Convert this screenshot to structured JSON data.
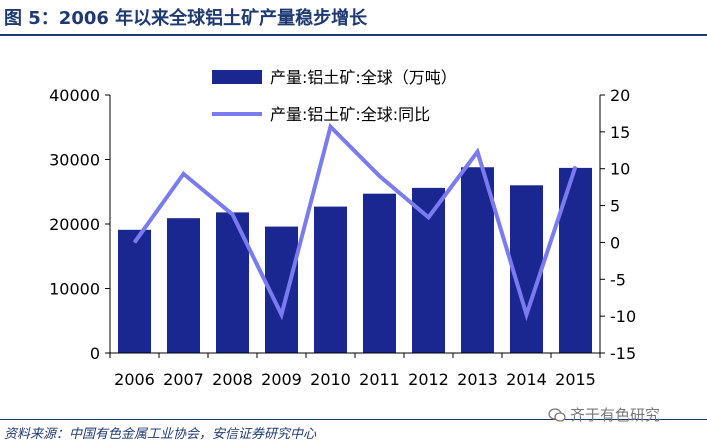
{
  "title": "图 5：2006 年以来全球铝土矿产量稳步增长",
  "source": "资料来源：中国有色金属工业协会，安信证券研究中心",
  "watermark": "齐于有色研究",
  "chart_data": {
    "type": "bar",
    "categories": [
      "2006",
      "2007",
      "2008",
      "2009",
      "2010",
      "2011",
      "2012",
      "2013",
      "2014",
      "2015"
    ],
    "series": [
      {
        "name": "产量:铝土矿:全球（万吨）",
        "type": "bar",
        "axis": "left",
        "color": "#1a2791",
        "values": [
          19100,
          20900,
          21800,
          19600,
          22700,
          24700,
          25600,
          28800,
          26000,
          28700
        ]
      },
      {
        "name": "产量:铝土矿:全球:同比",
        "type": "line",
        "axis": "right",
        "color": "#7b7bf0",
        "values": [
          0,
          9.3,
          3.8,
          -9.8,
          15.7,
          9.0,
          3.4,
          12.3,
          -9.8,
          10.3
        ]
      }
    ],
    "yleft": {
      "ylim": [
        0,
        40000
      ],
      "ticks": [
        "0",
        "10000",
        "20000",
        "30000",
        "40000"
      ]
    },
    "yright": {
      "ylim": [
        -15,
        20
      ],
      "ticks": [
        "-15",
        "-10",
        "-5",
        "0",
        "5",
        "10",
        "15",
        "20"
      ]
    },
    "legend": "top-center"
  }
}
